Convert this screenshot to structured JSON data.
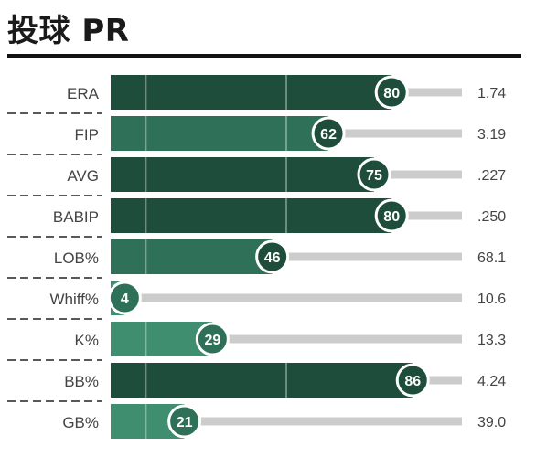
{
  "title": "投球 PR",
  "colors": {
    "high": "#1f4d3b",
    "mid": "#2e7058",
    "low": "#3f8e70",
    "track": "#cccccc",
    "badge_border": "#ffffff",
    "badge_text": "#ffffff",
    "label_text": "#444444"
  },
  "chart_data": {
    "type": "bar",
    "orientation": "horizontal",
    "xlim": [
      0,
      100
    ],
    "categories": [
      "ERA",
      "FIP",
      "AVG",
      "BABIP",
      "LOB%",
      "Whiff%",
      "K%",
      "BB%",
      "GB%"
    ],
    "values": [
      80,
      62,
      75,
      80,
      46,
      4,
      29,
      86,
      21
    ],
    "stat_values": [
      "1.74",
      "3.19",
      ".227",
      ".250",
      "68.1",
      "10.6",
      "13.3",
      "4.24",
      "39.0"
    ],
    "reference_lines": [
      10,
      50
    ]
  }
}
